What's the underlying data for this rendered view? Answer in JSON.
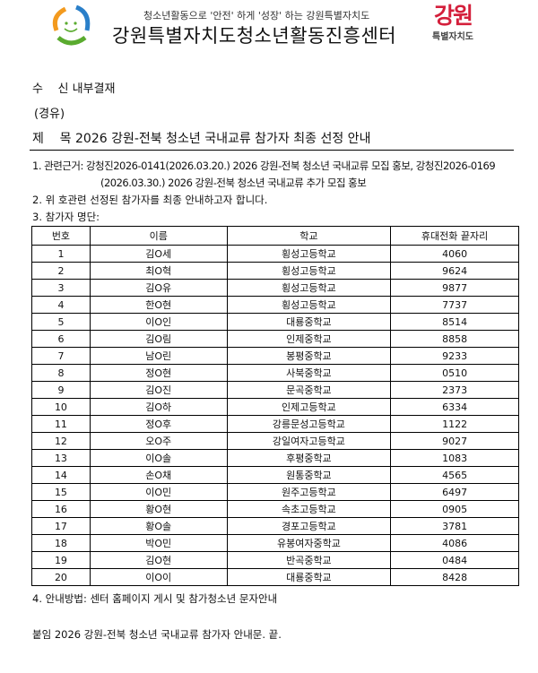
{
  "header": {
    "slogan": "청소년활동으로 '안전' 하게 '성장' 하는 강원특별자치도",
    "org_name": "강원특별자치도청소년활동진흥센터",
    "gangwon_logo_big": "강원",
    "gangwon_logo_small": "특별자치도",
    "brand_color": "#d41f3b"
  },
  "recipient": {
    "label": "수    신",
    "value": "내부결재"
  },
  "via": "(경유)",
  "subject": {
    "label": "제    목",
    "value": "2026 강원-전북 청소년 국내교류 참가자 최종 선정 안내"
  },
  "body": {
    "item1_line1": "1. 관련근거: 강청진2026-0141(2026.03.20.) 2026 강원-전북 청소년 국내교류 모집 홍보, 강청진2026-0169",
    "item1_line2": "(2026.03.30.) 2026 강원-전북 청소년 국내교류 추가 모집 홍보",
    "item2": "2. 위 호관련 선정된 참가자를 최종 안내하고자 합니다.",
    "item3": "3. 참가자 명단:",
    "item4": "4. 안내방법: 센터 홈페이지 게시 및 참가청소년 문자안내",
    "attachment": "붙임 2026 강원-전북 청소년 국내교류 참가자 안내문. 끝."
  },
  "table": {
    "headers": [
      "번호",
      "이름",
      "학교",
      "휴대전화 끝자리"
    ],
    "rows": [
      [
        "1",
        "김O세",
        "횡성고등학교",
        "4060"
      ],
      [
        "2",
        "최O혁",
        "횡성고등학교",
        "9624"
      ],
      [
        "3",
        "김O유",
        "횡성고등학교",
        "9877"
      ],
      [
        "4",
        "한O현",
        "횡성고등학교",
        "7737"
      ],
      [
        "5",
        "이O인",
        "대룡중학교",
        "8514"
      ],
      [
        "6",
        "김O림",
        "인제중학교",
        "8858"
      ],
      [
        "7",
        "남O린",
        "봉평중학교",
        "9233"
      ],
      [
        "8",
        "정O현",
        "사북중학교",
        "0510"
      ],
      [
        "9",
        "김O진",
        "문곡중학교",
        "2373"
      ],
      [
        "10",
        "김O하",
        "인제고등학교",
        "6334"
      ],
      [
        "11",
        "정O후",
        "강릉문성고등학교",
        "1122"
      ],
      [
        "12",
        "오O주",
        "강일여자고등학교",
        "9027"
      ],
      [
        "13",
        "이O솔",
        "후평중학교",
        "1083"
      ],
      [
        "14",
        "손O채",
        "원통중학교",
        "4565"
      ],
      [
        "15",
        "이O민",
        "원주고등학교",
        "6497"
      ],
      [
        "16",
        "황O현",
        "속초고등학교",
        "0905"
      ],
      [
        "17",
        "황O솔",
        "경포고등학교",
        "3781"
      ],
      [
        "18",
        "박O민",
        "유봉여자중학교",
        "4086"
      ],
      [
        "19",
        "김O현",
        "반곡중학교",
        "0484"
      ],
      [
        "20",
        "이O이",
        "대룡중학교",
        "8428"
      ]
    ]
  }
}
